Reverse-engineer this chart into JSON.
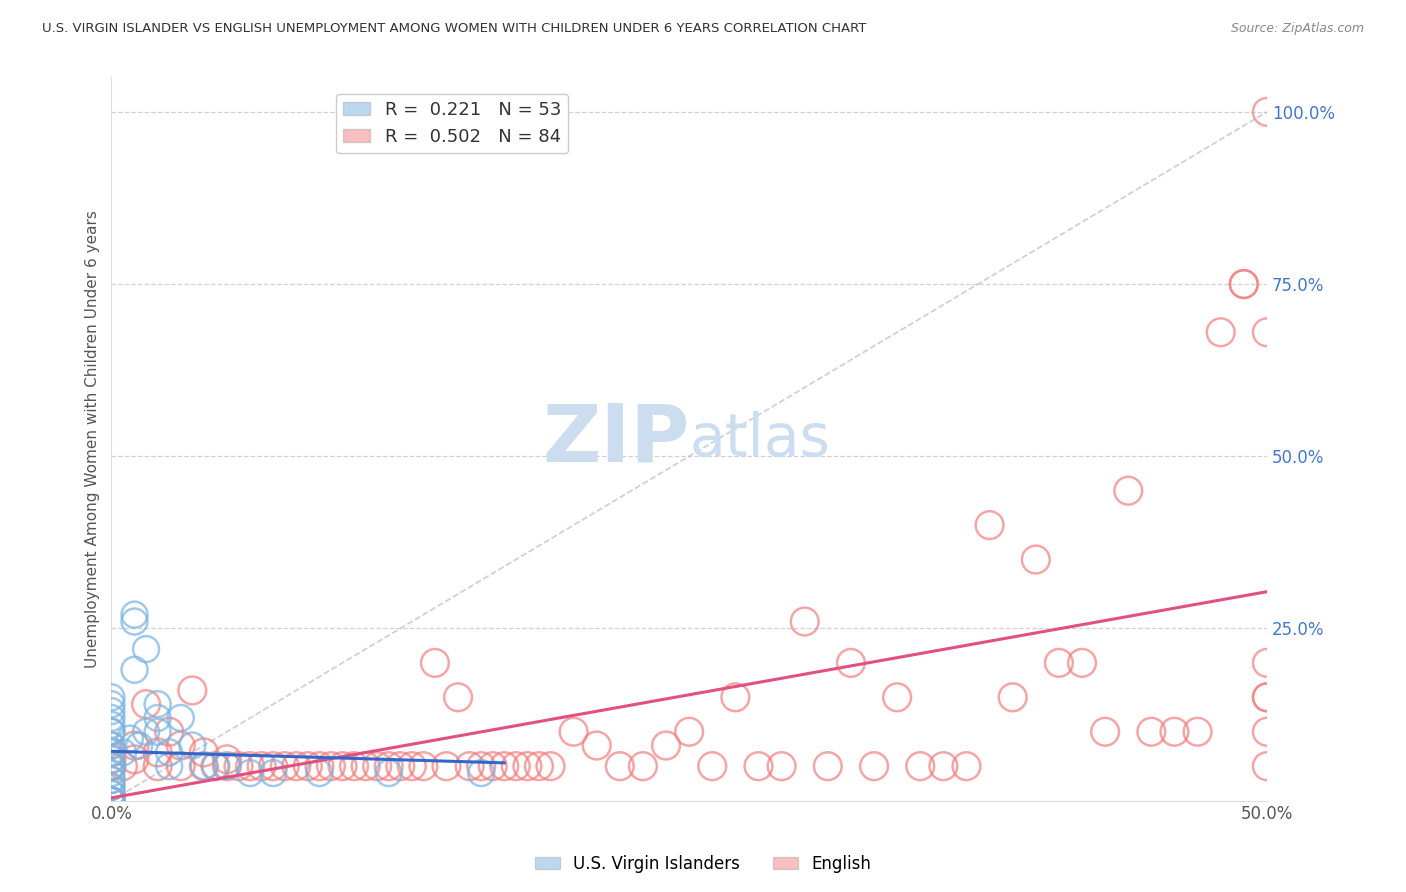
{
  "title": "U.S. VIRGIN ISLANDER VS ENGLISH UNEMPLOYMENT AMONG WOMEN WITH CHILDREN UNDER 6 YEARS CORRELATION CHART",
  "source": "Source: ZipAtlas.com",
  "ylabel": "Unemployment Among Women with Children Under 6 years",
  "xlim": [
    0.0,
    0.5
  ],
  "ylim": [
    0.0,
    1.05
  ],
  "xtick_labels": [
    "0.0%",
    "50.0%"
  ],
  "xtick_values": [
    0.0,
    0.5
  ],
  "ytick_labels": [
    "100.0%",
    "75.0%",
    "50.0%",
    "25.0%"
  ],
  "ytick_values": [
    1.0,
    0.75,
    0.5,
    0.25
  ],
  "grid_color": "#cccccc",
  "background_color": "#ffffff",
  "watermark_zip": "ZIP",
  "watermark_atlas": "atlas",
  "watermark_color": "#ccddf0",
  "legend_R_vi": "0.221",
  "legend_N_vi": "53",
  "legend_R_en": "0.502",
  "legend_N_en": "84",
  "color_vi": "#7ab3e0",
  "color_en": "#f08080",
  "regression_color_vi": "#3366cc",
  "regression_color_en": "#e05080",
  "vi_x": [
    0.0,
    0.0,
    0.0,
    0.0,
    0.0,
    0.0,
    0.0,
    0.0,
    0.0,
    0.0,
    0.0,
    0.0,
    0.0,
    0.0,
    0.0,
    0.0,
    0.0,
    0.0,
    0.0,
    0.0,
    0.0,
    0.0,
    0.0,
    0.0,
    0.0,
    0.0,
    0.0,
    0.0,
    0.0,
    0.0,
    0.005,
    0.008,
    0.01,
    0.01,
    0.01,
    0.012,
    0.015,
    0.015,
    0.02,
    0.02,
    0.02,
    0.025,
    0.025,
    0.03,
    0.035,
    0.04,
    0.045,
    0.05,
    0.06,
    0.07,
    0.09,
    0.12,
    0.16
  ],
  "vi_y": [
    0.0,
    0.0,
    0.0,
    0.0,
    0.0,
    0.0,
    0.0,
    0.0,
    0.0,
    0.0,
    0.01,
    0.01,
    0.02,
    0.02,
    0.03,
    0.03,
    0.04,
    0.05,
    0.06,
    0.07,
    0.08,
    0.08,
    0.1,
    0.1,
    0.11,
    0.12,
    0.13,
    0.14,
    0.15,
    0.05,
    0.07,
    0.09,
    0.26,
    0.27,
    0.19,
    0.08,
    0.22,
    0.1,
    0.14,
    0.12,
    0.1,
    0.07,
    0.05,
    0.12,
    0.08,
    0.05,
    0.05,
    0.05,
    0.04,
    0.04,
    0.04,
    0.04,
    0.04
  ],
  "en_x": [
    0.0,
    0.0,
    0.0,
    0.005,
    0.01,
    0.01,
    0.015,
    0.02,
    0.02,
    0.025,
    0.03,
    0.03,
    0.035,
    0.04,
    0.04,
    0.045,
    0.05,
    0.05,
    0.055,
    0.06,
    0.065,
    0.07,
    0.075,
    0.08,
    0.085,
    0.09,
    0.095,
    0.1,
    0.105,
    0.11,
    0.115,
    0.12,
    0.125,
    0.13,
    0.135,
    0.14,
    0.145,
    0.15,
    0.155,
    0.16,
    0.165,
    0.17,
    0.175,
    0.18,
    0.185,
    0.19,
    0.2,
    0.21,
    0.22,
    0.23,
    0.24,
    0.25,
    0.26,
    0.27,
    0.28,
    0.29,
    0.3,
    0.31,
    0.32,
    0.33,
    0.34,
    0.35,
    0.36,
    0.37,
    0.38,
    0.39,
    0.4,
    0.41,
    0.42,
    0.43,
    0.44,
    0.45,
    0.46,
    0.47,
    0.48,
    0.49,
    0.49,
    0.5,
    0.5,
    0.5,
    0.5,
    0.5,
    0.5,
    0.5
  ],
  "en_y": [
    0.05,
    0.06,
    0.07,
    0.05,
    0.06,
    0.08,
    0.14,
    0.05,
    0.07,
    0.1,
    0.08,
    0.05,
    0.16,
    0.05,
    0.07,
    0.05,
    0.05,
    0.06,
    0.05,
    0.05,
    0.05,
    0.05,
    0.05,
    0.05,
    0.05,
    0.05,
    0.05,
    0.05,
    0.05,
    0.05,
    0.05,
    0.05,
    0.05,
    0.05,
    0.05,
    0.2,
    0.05,
    0.15,
    0.05,
    0.05,
    0.05,
    0.05,
    0.05,
    0.05,
    0.05,
    0.05,
    0.1,
    0.08,
    0.05,
    0.05,
    0.08,
    0.1,
    0.05,
    0.15,
    0.05,
    0.05,
    0.26,
    0.05,
    0.2,
    0.05,
    0.15,
    0.05,
    0.05,
    0.05,
    0.4,
    0.15,
    0.35,
    0.2,
    0.2,
    0.1,
    0.45,
    0.1,
    0.1,
    0.1,
    0.68,
    0.75,
    0.75,
    0.68,
    0.15,
    1.0,
    0.15,
    0.2,
    0.1,
    0.05
  ]
}
